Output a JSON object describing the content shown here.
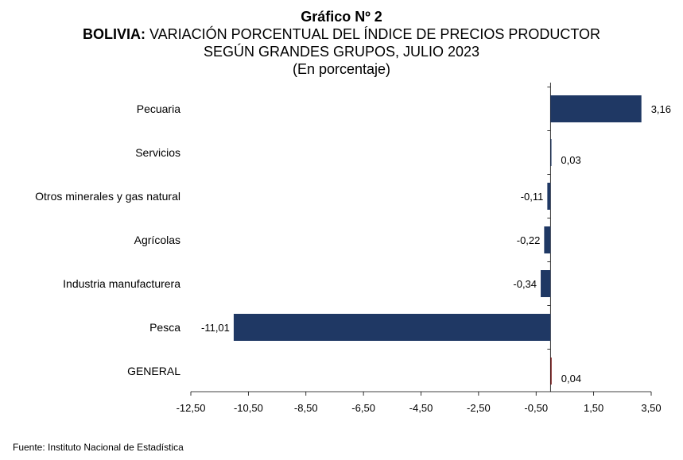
{
  "titles": {
    "chart_number": "Gráfico Nº 2",
    "country": "BOLIVIA:",
    "line1_rest": " VARIACIÓN PORCENTUAL DEL ÍNDICE DE PRECIOS PRODUCTOR",
    "line2": "SEGÚN GRANDES GRUPOS, JULIO 2023",
    "unit": "(En porcentaje)"
  },
  "chart_data": {
    "type": "bar",
    "orientation": "horizontal",
    "categories": [
      "Pecuaria",
      "Servicios",
      "Otros minerales y gas natural",
      "Agrícolas",
      "Industria manufacturera",
      "Pesca",
      "GENERAL"
    ],
    "values": [
      3.16,
      0.03,
      -0.11,
      -0.22,
      -0.34,
      -11.01,
      0.04
    ],
    "value_labels": [
      "3,16",
      "0,03",
      "-0,11",
      "-0,22",
      "-0,34",
      "-11,01",
      "0,04"
    ],
    "xlim": [
      -12.5,
      3.5
    ],
    "x_ticks": [
      -12.5,
      -10.5,
      -8.5,
      -6.5,
      -4.5,
      -2.5,
      -0.5,
      1.5,
      3.5
    ],
    "x_tick_labels": [
      "-12,50",
      "-10,50",
      "-8,50",
      "-6,50",
      "-4,50",
      "-2,50",
      "-0,50",
      "1,50",
      "3,50"
    ],
    "grid": false,
    "legend": "none",
    "colors": {
      "bars": "#1f3864",
      "general": "#7b1a1a"
    }
  },
  "source": "Fuente: Instituto Nacional de Estadística"
}
